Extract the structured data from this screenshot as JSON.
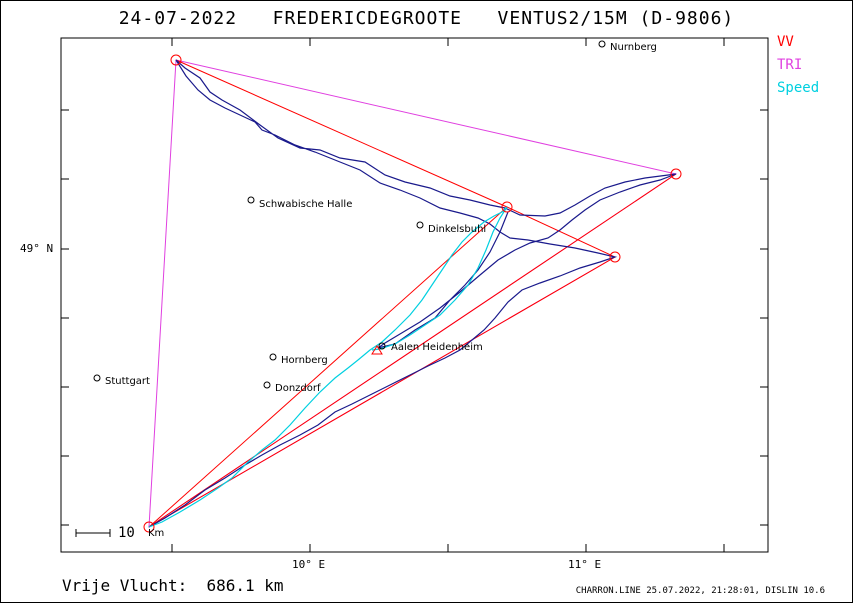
{
  "header": {
    "date": "24-07-2022",
    "pilot": "FREDERICDEGROOTE",
    "glider": "VENTUS2/15M (D-9806)"
  },
  "legend": [
    {
      "label": "VV",
      "color": "#ff0000"
    },
    {
      "label": "TRI",
      "color": "#e040e0"
    },
    {
      "label": "Speed",
      "color": "#00d0e0"
    }
  ],
  "axes": {
    "lat_label": "49° N",
    "lon_labels": [
      "10° E",
      "11° E"
    ]
  },
  "scale": {
    "label": "10",
    "unit": "Km"
  },
  "towns": [
    {
      "name": "Nurnberg"
    },
    {
      "name": "Schwabische Halle"
    },
    {
      "name": "Dinkelsbuhl"
    },
    {
      "name": "Aalen Heidenheim"
    },
    {
      "name": "Hornberg"
    },
    {
      "name": "Donzdorf"
    },
    {
      "name": "Stuttgart"
    }
  ],
  "footer": {
    "distance": "Vrije Vlucht:  686.1 km",
    "info": "CHARRON.LINE 25.07.2022, 21:28:01, DISLIN 10.6"
  },
  "colors": {
    "track": "#1a1a8c",
    "vv": "#ff0000",
    "tri": "#e040e0",
    "speed": "#00d0e0"
  }
}
